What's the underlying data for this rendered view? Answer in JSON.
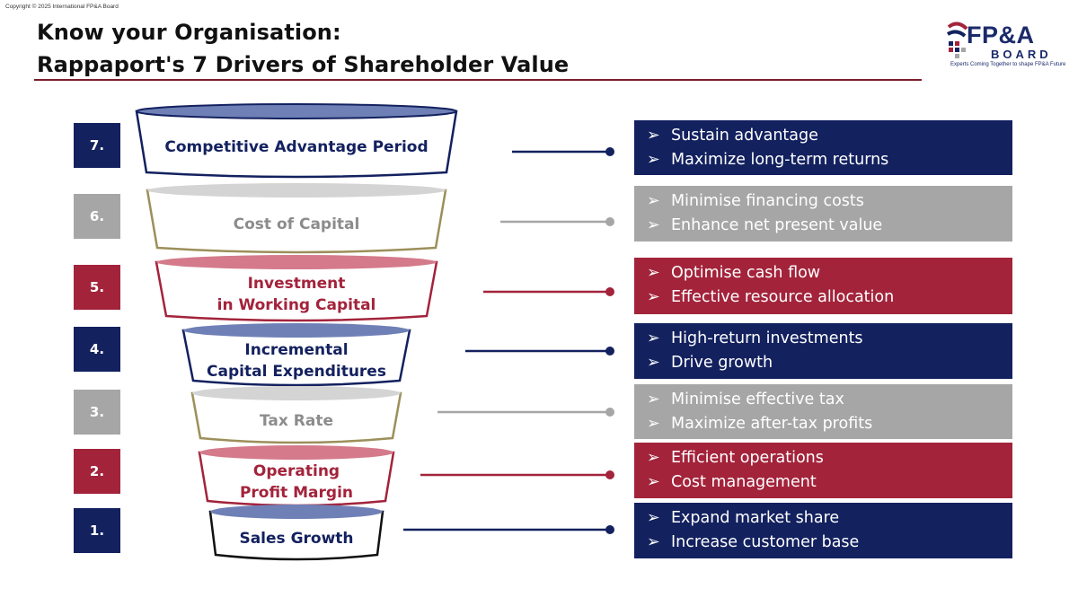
{
  "copyright": "Copyright © 2025 International FP&A Board",
  "title": {
    "line1": "Know your Organisation:",
    "line2": "Rappaport's 7 Drivers of Shareholder Value"
  },
  "logo": {
    "name": "FP&A",
    "board": "BOARD",
    "tagline": "Experts Coming Together to shape FP&A Future"
  },
  "colors": {
    "navy": "#13215f",
    "gray": "#a6a6a6",
    "crimson": "#a3233b",
    "olive": "#9c8f5a"
  },
  "bullet_marker": "➢",
  "drivers": [
    {
      "number": "7.",
      "label_lines": [
        "Competitive Advantage Period"
      ],
      "color": "navy",
      "bullets": [
        "Sustain advantage",
        "Maximize long-term returns"
      ]
    },
    {
      "number": "6.",
      "label_lines": [
        "Cost of Capital"
      ],
      "color": "gray",
      "bullets": [
        "Minimise financing costs",
        "Enhance net present value"
      ]
    },
    {
      "number": "5.",
      "label_lines": [
        "Investment",
        "in Working Capital"
      ],
      "color": "crimson",
      "bullets": [
        "Optimise cash flow",
        "Effective resource allocation"
      ]
    },
    {
      "number": "4.",
      "label_lines": [
        "Incremental",
        "Capital Expenditures"
      ],
      "color": "navy",
      "bullets": [
        "High-return investments",
        "Drive growth"
      ]
    },
    {
      "number": "3.",
      "label_lines": [
        "Tax Rate"
      ],
      "color": "gray",
      "bullets": [
        "Minimise effective tax",
        "Maximize after-tax profits"
      ]
    },
    {
      "number": "2.",
      "label_lines": [
        "Operating",
        "Profit Margin"
      ],
      "color": "crimson",
      "bullets": [
        "Efficient operations",
        "Cost management"
      ]
    },
    {
      "number": "1.",
      "label_lines": [
        "Sales Growth"
      ],
      "color": "navy",
      "bullets": [
        "Expand market share",
        "Increase customer base"
      ]
    }
  ]
}
